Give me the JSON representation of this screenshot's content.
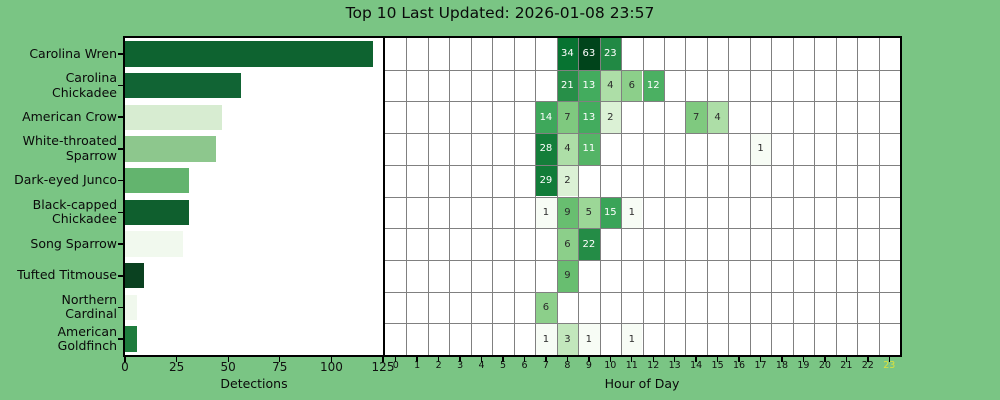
{
  "title": "Top 10 Last Updated: 2026-01-08 23:57",
  "colors": {
    "background": "#7ac584",
    "plot_background": "#ffffff",
    "spine": "#000000",
    "grid_line": "#808080",
    "tick_label": "#111111",
    "current_hour_label": "#dce13e",
    "cell_text_dark": "#2b2b2b",
    "cell_text_light": "#ffffff",
    "colormap": "Greens"
  },
  "chart_data": [
    {
      "type": "bar",
      "orientation": "horizontal",
      "xlabel": "Detections",
      "xlim": [
        0,
        125
      ],
      "xticks": [
        0,
        25,
        50,
        75,
        100,
        125
      ],
      "grid": false,
      "categories": [
        "Carolina Wren",
        "Carolina Chickadee",
        "American Crow",
        "White-throated Sparrow",
        "Dark-eyed Junco",
        "Black-capped Chickadee",
        "Song Sparrow",
        "Tufted Titmouse",
        "Northern Cardinal",
        "American Goldfinch"
      ],
      "category_label_lines": [
        [
          "Carolina Wren"
        ],
        [
          "Carolina",
          "Chickadee"
        ],
        [
          "American Crow"
        ],
        [
          "White-throated",
          "Sparrow"
        ],
        [
          "Dark-eyed Junco"
        ],
        [
          "Black-capped",
          "Chickadee"
        ],
        [
          "Song Sparrow"
        ],
        [
          "Tufted Titmouse"
        ],
        [
          "Northern",
          "Cardinal"
        ],
        [
          "American",
          "Goldfinch"
        ]
      ],
      "values": [
        120,
        56,
        47,
        44,
        31,
        31,
        28,
        9,
        6,
        6
      ],
      "bar_colors": [
        "#0e6330",
        "#116434",
        "#d7ecd1",
        "#8dc78d",
        "#63b46e",
        "#0f5f2e",
        "#f1f9ee",
        "#0a4120",
        "#f0f8ed",
        "#1e7c3d"
      ]
    },
    {
      "type": "heatmap",
      "xlabel": "Hour of Day",
      "xticklabels": [
        "0",
        "1",
        "2",
        "3",
        "4",
        "5",
        "6",
        "7",
        "8",
        "9",
        "10",
        "11",
        "12",
        "13",
        "14",
        "15",
        "16",
        "17",
        "18",
        "19",
        "20",
        "21",
        "22",
        "23"
      ],
      "highlighted_hour": 23,
      "value_max": 63,
      "norm": "log",
      "series": [
        {
          "name": "Carolina Wren",
          "hourly": {
            "8": 34,
            "9": 63,
            "10": 23
          }
        },
        {
          "name": "Carolina Chickadee",
          "hourly": {
            "8": 21,
            "9": 13,
            "10": 4,
            "11": 6,
            "12": 12
          }
        },
        {
          "name": "American Crow",
          "hourly": {
            "7": 14,
            "8": 7,
            "9": 13,
            "10": 2,
            "14": 7,
            "15": 4
          }
        },
        {
          "name": "White-throated Sparrow",
          "hourly": {
            "7": 28,
            "8": 4,
            "9": 11,
            "17": 1
          }
        },
        {
          "name": "Dark-eyed Junco",
          "hourly": {
            "7": 29,
            "8": 2
          }
        },
        {
          "name": "Black-capped Chickadee",
          "hourly": {
            "7": 1,
            "8": 9,
            "9": 5,
            "10": 15,
            "11": 1
          }
        },
        {
          "name": "Song Sparrow",
          "hourly": {
            "8": 6,
            "9": 22
          }
        },
        {
          "name": "Tufted Titmouse",
          "hourly": {
            "8": 9
          }
        },
        {
          "name": "Northern Cardinal",
          "hourly": {
            "7": 6
          }
        },
        {
          "name": "American Goldfinch",
          "hourly": {
            "7": 1,
            "8": 3,
            "9": 1,
            "11": 1
          }
        }
      ]
    }
  ]
}
